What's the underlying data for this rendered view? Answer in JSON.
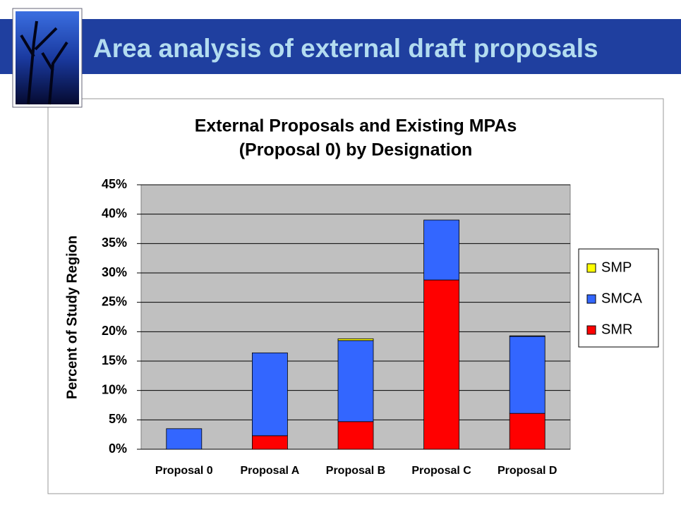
{
  "header": {
    "title": "Area analysis of external draft proposals"
  },
  "chart_data": {
    "type": "stacked-bar",
    "title_lines": [
      "External Proposals and Existing MPAs",
      "(Proposal 0) by Designation"
    ],
    "y_label": "Percent of  Study Region",
    "categories": [
      "Proposal 0",
      "Proposal A",
      "Proposal B",
      "Proposal C",
      "Proposal D"
    ],
    "series": [
      {
        "name": "SMR",
        "color": "#ff0000",
        "values": [
          0,
          2.3,
          4.7,
          28.8,
          6.1
        ]
      },
      {
        "name": "SMCA",
        "color": "#3366ff",
        "values": [
          3.5,
          14.1,
          13.8,
          10.2,
          13.1
        ]
      },
      {
        "name": "SMP",
        "color": "#ffff00",
        "values": [
          0,
          0,
          0.3,
          0,
          0.1
        ]
      }
    ],
    "ylim": [
      0,
      45
    ],
    "yticks": [
      {
        "value": 0,
        "label": "0%"
      },
      {
        "value": 5,
        "label": "5%"
      },
      {
        "value": 10,
        "label": "10%"
      },
      {
        "value": 15,
        "label": "15%"
      },
      {
        "value": 20,
        "label": "20%"
      },
      {
        "value": 25,
        "label": "25%"
      },
      {
        "value": 30,
        "label": "30%"
      },
      {
        "value": 35,
        "label": "35%"
      },
      {
        "value": 40,
        "label": "40%"
      },
      {
        "value": 45,
        "label": "45%"
      }
    ],
    "grid": true,
    "legend": "right",
    "plot_background": "#c0c0c0"
  }
}
